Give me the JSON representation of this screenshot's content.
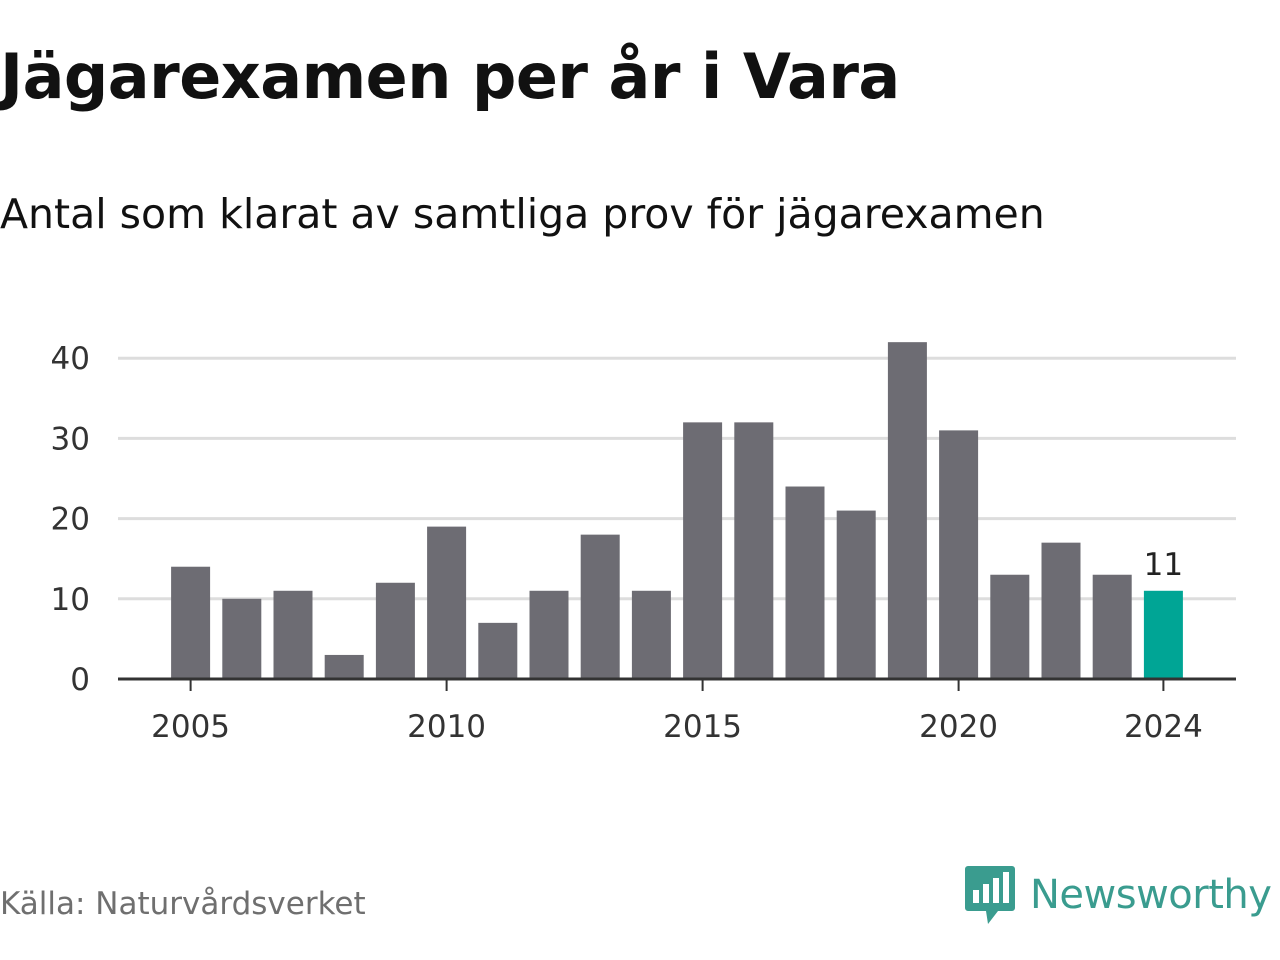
{
  "header": {
    "title": "Jägarexamen per år i Vara",
    "subtitle": "Antal som klarat av samtliga prov för jägarexamen"
  },
  "footer": {
    "source": "Källa: Naturvårdsverket",
    "brand": "Newsworthy",
    "brand_icon": "newsworthy-bar-chart-icon"
  },
  "colors": {
    "bar": "#6d6c73",
    "highlight": "#00a595",
    "grid": "#dddddd",
    "axis": "#333333",
    "brand": "#3a9c8f"
  },
  "chart_data": {
    "type": "bar",
    "title": "Jägarexamen per år i Vara",
    "subtitle": "Antal som klarat av samtliga prov för jägarexamen",
    "xlabel": "",
    "ylabel": "",
    "categories": [
      2005,
      2006,
      2007,
      2008,
      2009,
      2010,
      2011,
      2012,
      2013,
      2014,
      2015,
      2016,
      2017,
      2018,
      2019,
      2020,
      2021,
      2022,
      2023,
      2024
    ],
    "values": [
      14,
      10,
      11,
      3,
      12,
      19,
      7,
      11,
      18,
      11,
      32,
      32,
      24,
      21,
      42,
      31,
      13,
      17,
      13,
      11
    ],
    "ylim": [
      0,
      42
    ],
    "yticks": [
      0,
      10,
      20,
      30,
      40
    ],
    "xticks": [
      2005,
      2010,
      2015,
      2020,
      2024
    ],
    "highlight": {
      "category": 2024,
      "label": "11"
    },
    "grid": true,
    "legend": "none"
  }
}
